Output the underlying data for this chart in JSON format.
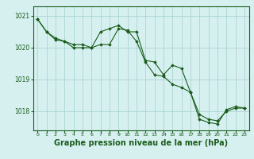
{
  "background_color": "#d6f0f0",
  "grid_color": "#aad4d4",
  "line_color": "#1a5c1a",
  "marker_color": "#1a5c1a",
  "xlabel": "Graphe pression niveau de la mer (hPa)",
  "xlabel_fontsize": 7.0,
  "ylim": [
    1017.4,
    1021.3
  ],
  "xlim": [
    -0.5,
    23.5
  ],
  "yticks": [
    1018,
    1019,
    1020,
    1021
  ],
  "xticks": [
    0,
    1,
    2,
    3,
    4,
    5,
    6,
    7,
    8,
    9,
    10,
    11,
    12,
    13,
    14,
    15,
    16,
    17,
    18,
    19,
    20,
    21,
    22,
    23
  ],
  "series1": [
    1020.9,
    1020.5,
    1020.3,
    1020.2,
    1020.1,
    1020.1,
    1020.0,
    1020.5,
    1020.6,
    1020.7,
    1020.5,
    1020.5,
    1019.6,
    1019.55,
    1019.15,
    1019.45,
    1019.35,
    1018.6,
    1017.75,
    1017.65,
    1017.6,
    1018.05,
    1018.15,
    1018.1
  ],
  "series2": [
    1020.9,
    1020.5,
    1020.25,
    1020.2,
    1020.0,
    1020.0,
    1020.0,
    1020.1,
    1020.1,
    1020.6,
    1020.55,
    1020.2,
    1019.55,
    1019.15,
    1019.1,
    1018.85,
    1018.75,
    1018.6,
    1017.9,
    1017.75,
    1017.7,
    1018.0,
    1018.1,
    1018.1
  ]
}
